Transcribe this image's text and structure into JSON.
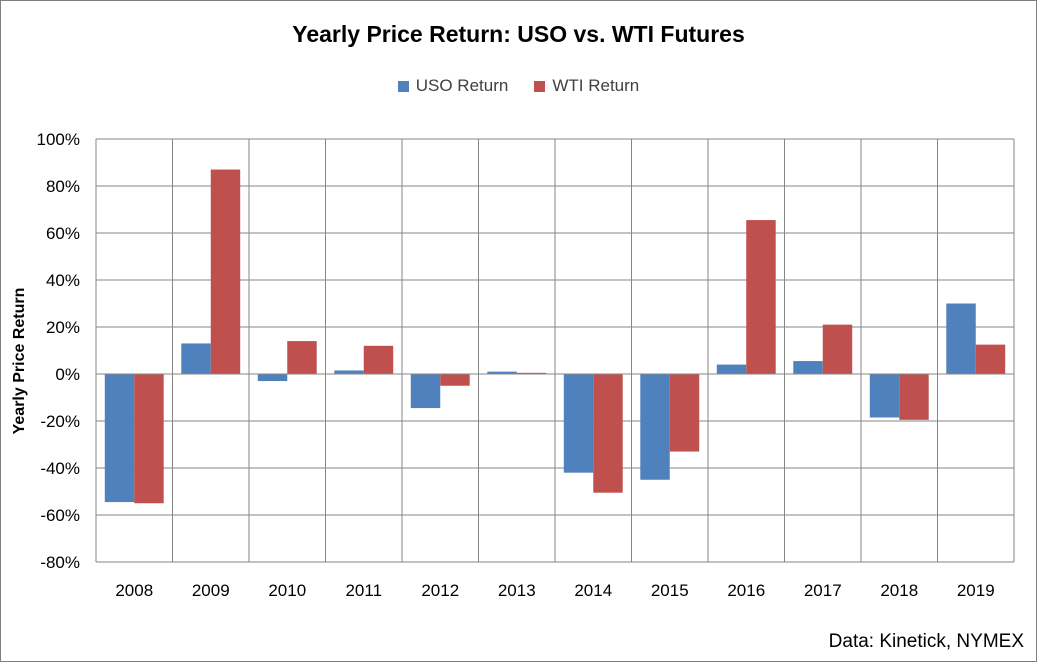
{
  "chart_data": {
    "type": "bar",
    "title": "Yearly Price Return: USO vs. WTI Futures",
    "ylabel": "Yearly Price Return",
    "xlabel": "",
    "categories": [
      "2008",
      "2009",
      "2010",
      "2011",
      "2012",
      "2013",
      "2014",
      "2015",
      "2016",
      "2017",
      "2018",
      "2019"
    ],
    "series": [
      {
        "name": "USO Return",
        "color": "#4f81bd",
        "values": [
          -54.5,
          13,
          -3,
          1.5,
          -14.5,
          1,
          -42,
          -45,
          4,
          5.5,
          -18.5,
          30
        ]
      },
      {
        "name": "WTI Return",
        "color": "#c0504d",
        "values": [
          -55,
          87,
          14,
          12,
          -5,
          0.5,
          -50.5,
          -33,
          65.5,
          21,
          -19.5,
          12.5
        ]
      }
    ],
    "ylim": [
      -80,
      100
    ],
    "yticks": [
      -80,
      -60,
      -40,
      -20,
      0,
      20,
      40,
      60,
      80,
      100
    ],
    "ytick_labels": [
      "-80%",
      "-60%",
      "-40%",
      "-20%",
      "0%",
      "20%",
      "40%",
      "60%",
      "80%",
      "100%"
    ],
    "grid": true,
    "legend_position": "top-center",
    "source": "Data: Kinetick, NYMEX"
  }
}
